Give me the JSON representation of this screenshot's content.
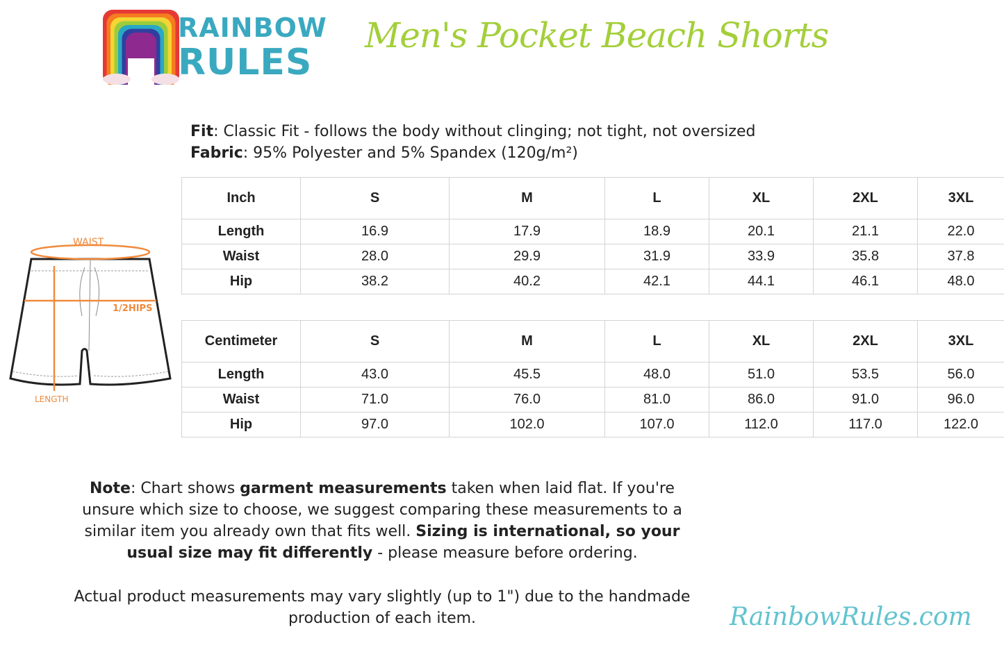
{
  "brand": {
    "logo_text_1": "RAINBOW",
    "logo_text_2": "RULES",
    "rainbow_colors": [
      "#e53935",
      "#f57c20",
      "#f5d533",
      "#9ccc3c",
      "#29a8c5",
      "#303f9f",
      "#8e2a8f"
    ]
  },
  "title": "Men's Pocket Beach Shorts",
  "specs": {
    "fit_label": "Fit",
    "fit_value": ": Classic Fit - follows the body without clinging; not tight, not oversized",
    "fabric_label": "Fabric",
    "fabric_value": ": 95% Polyester and 5% Spandex (120g/m²)"
  },
  "diagram": {
    "waist": "WAIST",
    "hips": "1/2HIPS",
    "length": "LENGTH",
    "accent": "#f08a3c"
  },
  "inch_table": {
    "headers": [
      "Inch",
      "S",
      "M",
      "L",
      "XL",
      "2XL",
      "3XL"
    ],
    "rows": [
      [
        "Length",
        "16.9",
        "17.9",
        "18.9",
        "20.1",
        "21.1",
        "22.0"
      ],
      [
        "Waist",
        "28.0",
        "29.9",
        "31.9",
        "33.9",
        "35.8",
        "37.8"
      ],
      [
        "Hip",
        "38.2",
        "40.2",
        "42.1",
        "44.1",
        "46.1",
        "48.0"
      ]
    ]
  },
  "cm_table": {
    "headers": [
      "Centimeter",
      "S",
      "M",
      "L",
      "XL",
      "2XL",
      "3XL"
    ],
    "rows": [
      [
        "Length",
        "43.0",
        "45.5",
        "48.0",
        "51.0",
        "53.5",
        "56.0"
      ],
      [
        "Waist",
        "71.0",
        "76.0",
        "81.0",
        "86.0",
        "91.0",
        "96.0"
      ],
      [
        "Hip",
        "97.0",
        "102.0",
        "107.0",
        "112.0",
        "117.0",
        "122.0"
      ]
    ]
  },
  "note": {
    "label": "Note",
    "p1": ": Chart shows ",
    "b1": "garment measurements",
    "p2": " taken when laid flat. If you're unsure which size to choose, we suggest comparing these measurements to a similar item you already own that fits well. ",
    "b2": "Sizing is international, so your usual size may fit differently",
    "p3": " - please measure before ordering."
  },
  "note2": "Actual product measurements may vary slightly (up to 1\") due to the handmade production of each item.",
  "site": "RainbowRules.com"
}
